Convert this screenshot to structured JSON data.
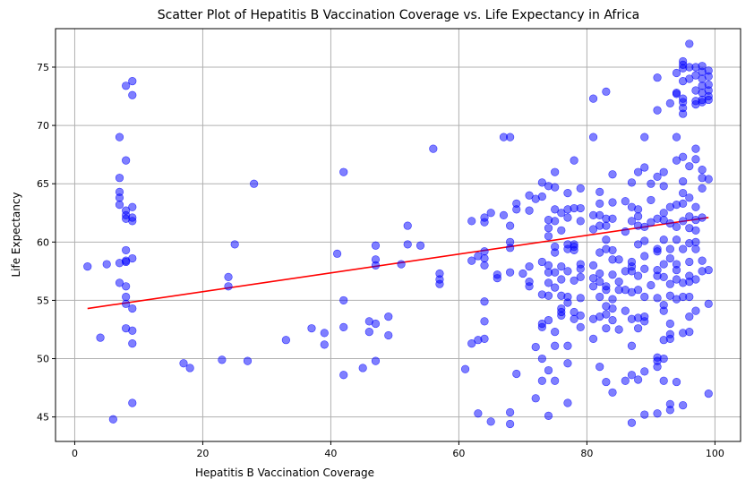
{
  "chart_data": {
    "type": "scatter",
    "title": "Scatter Plot of Hepatitis B Vaccination Coverage vs. Life Expectancy in Africa",
    "xlabel": "Hepatitis B Vaccination Coverage",
    "ylabel": "Life Expectancy",
    "xlim": [
      -3,
      104
    ],
    "ylim": [
      42.9,
      78.3
    ],
    "xticks": [
      0,
      20,
      40,
      60,
      80,
      100
    ],
    "yticks": [
      45,
      50,
      55,
      60,
      65,
      70,
      75
    ],
    "grid": true,
    "point_color": "#0000ff",
    "point_alpha": 0.5,
    "trend_color": "#ff0000",
    "trend_line": {
      "x": [
        2,
        99
      ],
      "y": [
        54.3,
        62.1
      ]
    },
    "points": [
      [
        2,
        57.9
      ],
      [
        4,
        51.8
      ],
      [
        5,
        58.1
      ],
      [
        6,
        44.8
      ],
      [
        7,
        58.2
      ],
      [
        7,
        56.5
      ],
      [
        7,
        69.0
      ],
      [
        7,
        65.5
      ],
      [
        7,
        64.3
      ],
      [
        7,
        63.8
      ],
      [
        7,
        63.2
      ],
      [
        8,
        73.4
      ],
      [
        8,
        67.0
      ],
      [
        8,
        62.7
      ],
      [
        8,
        62.3
      ],
      [
        8,
        62.0
      ],
      [
        8,
        59.3
      ],
      [
        8,
        58.4
      ],
      [
        8,
        58.3
      ],
      [
        8,
        56.2
      ],
      [
        8,
        55.3
      ],
      [
        8,
        54.7
      ],
      [
        8,
        52.6
      ],
      [
        9,
        73.8
      ],
      [
        9,
        72.6
      ],
      [
        9,
        63.0
      ],
      [
        9,
        62.1
      ],
      [
        9,
        61.8
      ],
      [
        9,
        58.6
      ],
      [
        9,
        54.3
      ],
      [
        9,
        52.4
      ],
      [
        9,
        51.3
      ],
      [
        9,
        46.2
      ],
      [
        17,
        49.6
      ],
      [
        18,
        49.2
      ],
      [
        23,
        49.9
      ],
      [
        24,
        57.0
      ],
      [
        24,
        56.2
      ],
      [
        25,
        59.8
      ],
      [
        27,
        49.8
      ],
      [
        28,
        65.0
      ],
      [
        33,
        51.6
      ],
      [
        37,
        52.6
      ],
      [
        39,
        52.2
      ],
      [
        39,
        51.2
      ],
      [
        41,
        59.0
      ],
      [
        42,
        66.0
      ],
      [
        42,
        55.0
      ],
      [
        42,
        52.7
      ],
      [
        42,
        48.6
      ],
      [
        45,
        49.2
      ],
      [
        46,
        53.2
      ],
      [
        46,
        52.3
      ],
      [
        47,
        59.7
      ],
      [
        47,
        58.5
      ],
      [
        47,
        58.0
      ],
      [
        47,
        53.0
      ],
      [
        47,
        49.8
      ],
      [
        49,
        53.6
      ],
      [
        49,
        52.0
      ],
      [
        51,
        58.1
      ],
      [
        52,
        61.4
      ],
      [
        52,
        59.8
      ],
      [
        54,
        59.7
      ],
      [
        56,
        68.0
      ],
      [
        57,
        57.3
      ],
      [
        57,
        56.8
      ],
      [
        57,
        56.4
      ],
      [
        61,
        49.1
      ],
      [
        62,
        61.8
      ],
      [
        62,
        58.4
      ],
      [
        62,
        51.3
      ],
      [
        63,
        58.8
      ],
      [
        63,
        51.6
      ],
      [
        63,
        45.3
      ],
      [
        64,
        62.1
      ],
      [
        64,
        61.7
      ],
      [
        64,
        59.2
      ],
      [
        64,
        58.6
      ],
      [
        64,
        58.0
      ],
      [
        64,
        54.9
      ],
      [
        64,
        53.2
      ],
      [
        64,
        51.7
      ],
      [
        65,
        62.5
      ],
      [
        65,
        44.6
      ],
      [
        66,
        57.2
      ],
      [
        66,
        56.9
      ],
      [
        67,
        69.0
      ],
      [
        67,
        62.3
      ],
      [
        68,
        69.0
      ],
      [
        68,
        61.4
      ],
      [
        68,
        60.0
      ],
      [
        68,
        59.5
      ],
      [
        68,
        57.4
      ],
      [
        68,
        45.4
      ],
      [
        68,
        44.4
      ],
      [
        69,
        63.3
      ],
      [
        69,
        62.8
      ],
      [
        69,
        48.7
      ],
      [
        70,
        57.3
      ],
      [
        71,
        64.0
      ],
      [
        71,
        62.7
      ],
      [
        71,
        57.9
      ],
      [
        71,
        56.6
      ],
      [
        71,
        56.2
      ],
      [
        72,
        63.7
      ],
      [
        72,
        51.0
      ],
      [
        72,
        46.6
      ],
      [
        73,
        65.1
      ],
      [
        73,
        63.9
      ],
      [
        73,
        58.3
      ],
      [
        73,
        55.5
      ],
      [
        73,
        53.0
      ],
      [
        73,
        52.7
      ],
      [
        73,
        50.0
      ],
      [
        73,
        48.1
      ],
      [
        74,
        64.8
      ],
      [
        74,
        61.9
      ],
      [
        74,
        61.2
      ],
      [
        74,
        60.5
      ],
      [
        74,
        58.0
      ],
      [
        74,
        57.4
      ],
      [
        74,
        56.5
      ],
      [
        74,
        55.4
      ],
      [
        74,
        53.3
      ],
      [
        74,
        49.0
      ],
      [
        74,
        45.1
      ],
      [
        75,
        66.0
      ],
      [
        75,
        64.7
      ],
      [
        75,
        62.8
      ],
      [
        75,
        61.8
      ],
      [
        75,
        59.6
      ],
      [
        75,
        59.1
      ],
      [
        75,
        57.4
      ],
      [
        75,
        56.1
      ],
      [
        75,
        52.3
      ],
      [
        75,
        51.1
      ],
      [
        75,
        48.1
      ],
      [
        76,
        62.5
      ],
      [
        76,
        61.0
      ],
      [
        76,
        57.9
      ],
      [
        76,
        56.8
      ],
      [
        76,
        55.4
      ],
      [
        76,
        54.3
      ],
      [
        76,
        54.0
      ],
      [
        76,
        53.7
      ],
      [
        77,
        64.2
      ],
      [
        77,
        62.8
      ],
      [
        77,
        62.1
      ],
      [
        77,
        59.8
      ],
      [
        77,
        59.4
      ],
      [
        77,
        57.5
      ],
      [
        77,
        55.3
      ],
      [
        77,
        54.8
      ],
      [
        77,
        51.1
      ],
      [
        77,
        49.6
      ],
      [
        77,
        46.2
      ],
      [
        78,
        67.0
      ],
      [
        78,
        62.9
      ],
      [
        78,
        59.8
      ],
      [
        78,
        59.6
      ],
      [
        78,
        59.3
      ],
      [
        78,
        56.7
      ],
      [
        78,
        54.0
      ],
      [
        78,
        53.4
      ],
      [
        79,
        64.6
      ],
      [
        79,
        62.9
      ],
      [
        79,
        61.8
      ],
      [
        79,
        58.1
      ],
      [
        79,
        57.7
      ],
      [
        79,
        57.0
      ],
      [
        79,
        55.2
      ],
      [
        79,
        53.7
      ],
      [
        79,
        52.7
      ],
      [
        81,
        72.3
      ],
      [
        81,
        69.0
      ],
      [
        81,
        62.3
      ],
      [
        81,
        61.1
      ],
      [
        81,
        58.0
      ],
      [
        81,
        56.9
      ],
      [
        81,
        56.2
      ],
      [
        81,
        53.4
      ],
      [
        81,
        51.7
      ],
      [
        82,
        64.3
      ],
      [
        82,
        63.3
      ],
      [
        82,
        62.3
      ],
      [
        82,
        61.4
      ],
      [
        82,
        59.1
      ],
      [
        82,
        57.3
      ],
      [
        82,
        56.6
      ],
      [
        82,
        55.3
      ],
      [
        82,
        53.6
      ],
      [
        82,
        49.3
      ],
      [
        83,
        72.9
      ],
      [
        83,
        62.0
      ],
      [
        83,
        61.4
      ],
      [
        83,
        60.2
      ],
      [
        83,
        59.4
      ],
      [
        83,
        56.2
      ],
      [
        83,
        55.9
      ],
      [
        83,
        54.5
      ],
      [
        83,
        53.8
      ],
      [
        83,
        52.6
      ],
      [
        83,
        48.0
      ],
      [
        84,
        65.8
      ],
      [
        84,
        63.4
      ],
      [
        84,
        62.0
      ],
      [
        84,
        59.3
      ],
      [
        84,
        58.5
      ],
      [
        84,
        57.2
      ],
      [
        84,
        55.1
      ],
      [
        84,
        54.3
      ],
      [
        84,
        53.3
      ],
      [
        84,
        47.1
      ],
      [
        85,
        58.5
      ],
      [
        85,
        56.6
      ],
      [
        85,
        55.9
      ],
      [
        85,
        52.5
      ],
      [
        86,
        63.5
      ],
      [
        86,
        60.9
      ],
      [
        86,
        57.5
      ],
      [
        86,
        55.9
      ],
      [
        86,
        54.1
      ],
      [
        86,
        48.1
      ],
      [
        87,
        65.1
      ],
      [
        87,
        63.0
      ],
      [
        87,
        61.8
      ],
      [
        87,
        58.3
      ],
      [
        87,
        57.9
      ],
      [
        87,
        57.5
      ],
      [
        87,
        55.7
      ],
      [
        87,
        53.4
      ],
      [
        87,
        51.1
      ],
      [
        87,
        48.6
      ],
      [
        87,
        44.5
      ],
      [
        88,
        66.0
      ],
      [
        88,
        62.8
      ],
      [
        88,
        62.2
      ],
      [
        88,
        61.4
      ],
      [
        88,
        59.8
      ],
      [
        88,
        57.1
      ],
      [
        88,
        55.9
      ],
      [
        88,
        53.5
      ],
      [
        88,
        52.6
      ],
      [
        88,
        48.2
      ],
      [
        89,
        69.0
      ],
      [
        89,
        66.4
      ],
      [
        89,
        61.3
      ],
      [
        89,
        60.1
      ],
      [
        89,
        58.8
      ],
      [
        89,
        57.7
      ],
      [
        89,
        55.3
      ],
      [
        89,
        53.6
      ],
      [
        89,
        53.2
      ],
      [
        89,
        48.9
      ],
      [
        89,
        45.2
      ],
      [
        90,
        65.0
      ],
      [
        90,
        63.6
      ],
      [
        90,
        61.7
      ],
      [
        90,
        56.3
      ],
      [
        91,
        74.1
      ],
      [
        91,
        71.3
      ],
      [
        91,
        65.6
      ],
      [
        91,
        62.0
      ],
      [
        91,
        59.4
      ],
      [
        91,
        59.2
      ],
      [
        91,
        57.6
      ],
      [
        91,
        57.1
      ],
      [
        91,
        55.2
      ],
      [
        91,
        50.1
      ],
      [
        91,
        49.8
      ],
      [
        91,
        49.3
      ],
      [
        91,
        45.3
      ],
      [
        92,
        66.0
      ],
      [
        92,
        64.8
      ],
      [
        92,
        62.5
      ],
      [
        92,
        61.9
      ],
      [
        92,
        60.2
      ],
      [
        92,
        58.1
      ],
      [
        92,
        57.0
      ],
      [
        92,
        54.6
      ],
      [
        92,
        54.1
      ],
      [
        92,
        51.6
      ],
      [
        92,
        50.0
      ],
      [
        92,
        48.1
      ],
      [
        93,
        71.9
      ],
      [
        93,
        63.0
      ],
      [
        93,
        61.6
      ],
      [
        93,
        59.4
      ],
      [
        93,
        58.6
      ],
      [
        93,
        56.4
      ],
      [
        93,
        55.4
      ],
      [
        93,
        53.0
      ],
      [
        93,
        52.1
      ],
      [
        93,
        51.7
      ],
      [
        93,
        46.1
      ],
      [
        93,
        45.6
      ],
      [
        94,
        74.5
      ],
      [
        94,
        72.8
      ],
      [
        94,
        72.7
      ],
      [
        94,
        69.0
      ],
      [
        94,
        67.0
      ],
      [
        94,
        63.2
      ],
      [
        94,
        61.3
      ],
      [
        94,
        60.2
      ],
      [
        94,
        58.1
      ],
      [
        94,
        57.6
      ],
      [
        94,
        56.8
      ],
      [
        94,
        55.1
      ],
      [
        94,
        48.0
      ],
      [
        95,
        75.5
      ],
      [
        95,
        75.2
      ],
      [
        95,
        74.9
      ],
      [
        95,
        73.8
      ],
      [
        95,
        72.3
      ],
      [
        95,
        72.0
      ],
      [
        95,
        71.5
      ],
      [
        95,
        71.0
      ],
      [
        95,
        67.3
      ],
      [
        95,
        65.2
      ],
      [
        95,
        64.2
      ],
      [
        95,
        63.3
      ],
      [
        95,
        61.8
      ],
      [
        95,
        59.4
      ],
      [
        95,
        56.5
      ],
      [
        95,
        55.3
      ],
      [
        95,
        52.2
      ],
      [
        95,
        46.0
      ],
      [
        96,
        77.0
      ],
      [
        96,
        75.0
      ],
      [
        96,
        74.0
      ],
      [
        96,
        66.5
      ],
      [
        96,
        63.8
      ],
      [
        96,
        62.2
      ],
      [
        96,
        61.2
      ],
      [
        96,
        59.9
      ],
      [
        96,
        58.3
      ],
      [
        96,
        57.1
      ],
      [
        96,
        56.6
      ],
      [
        96,
        55.3
      ],
      [
        96,
        53.6
      ],
      [
        96,
        52.3
      ],
      [
        97,
        75.0
      ],
      [
        97,
        74.3
      ],
      [
        97,
        73.0
      ],
      [
        97,
        72.1
      ],
      [
        97,
        71.8
      ],
      [
        97,
        68.0
      ],
      [
        97,
        67.1
      ],
      [
        97,
        63.0
      ],
      [
        97,
        61.9
      ],
      [
        97,
        61.0
      ],
      [
        97,
        60.0
      ],
      [
        97,
        59.4
      ],
      [
        97,
        56.8
      ],
      [
        97,
        54.1
      ],
      [
        98,
        75.1
      ],
      [
        98,
        74.6
      ],
      [
        98,
        74.0
      ],
      [
        98,
        73.4
      ],
      [
        98,
        72.8
      ],
      [
        98,
        72.2
      ],
      [
        98,
        72.0
      ],
      [
        98,
        66.2
      ],
      [
        98,
        65.5
      ],
      [
        98,
        64.6
      ],
      [
        98,
        62.1
      ],
      [
        98,
        58.4
      ],
      [
        98,
        57.5
      ],
      [
        99,
        74.7
      ],
      [
        99,
        74.2
      ],
      [
        99,
        73.5
      ],
      [
        99,
        73.0
      ],
      [
        99,
        72.5
      ],
      [
        99,
        72.2
      ],
      [
        99,
        65.4
      ],
      [
        99,
        57.6
      ],
      [
        99,
        54.7
      ],
      [
        99,
        47.0
      ]
    ]
  }
}
